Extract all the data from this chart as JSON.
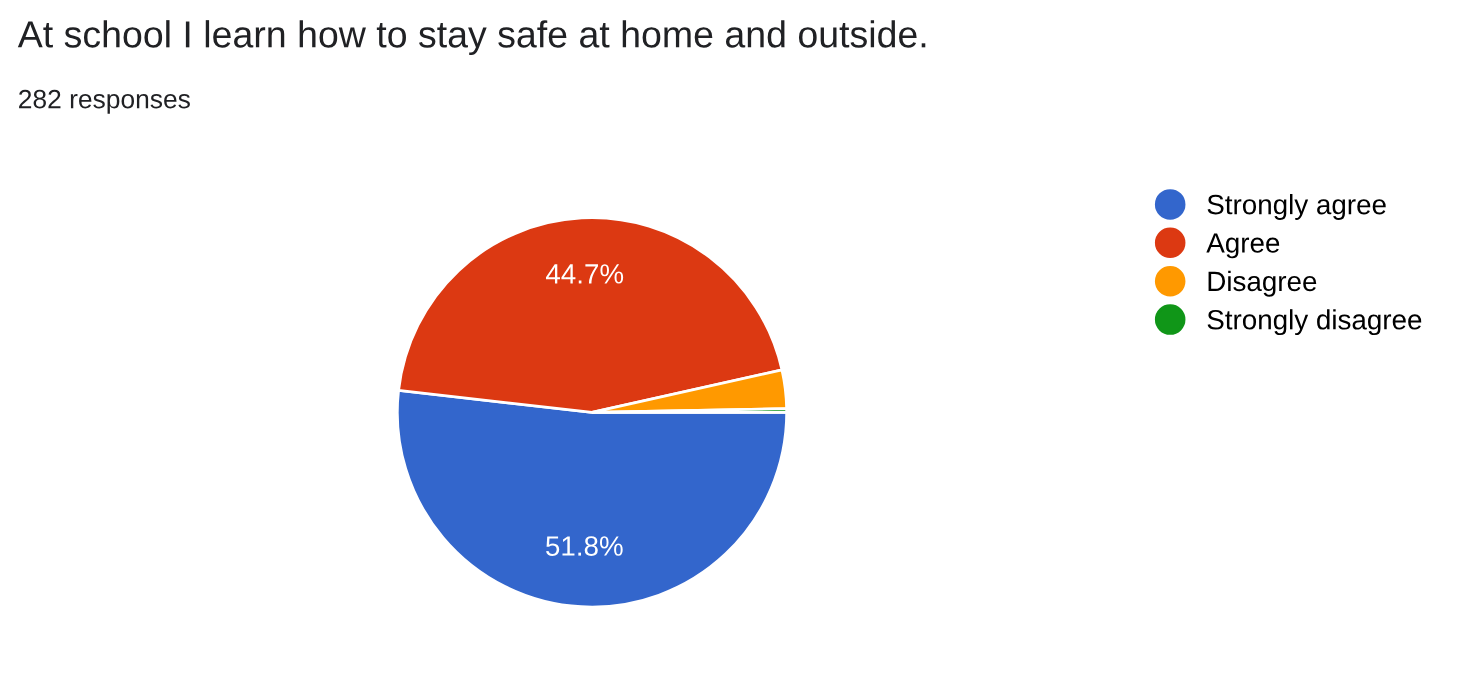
{
  "chart_data": {
    "type": "pie",
    "title": "At school I learn how to stay safe at home and outside.",
    "subtitle": "282 responses",
    "categories": [
      "Strongly agree",
      "Agree",
      "Disagree",
      "Strongly disagree"
    ],
    "values": [
      51.8,
      44.7,
      3.2,
      0.3
    ],
    "colors": [
      "#3366cc",
      "#dc3912",
      "#ff9900",
      "#109618"
    ],
    "value_labels": [
      "51.8%",
      "44.7%",
      null,
      null
    ],
    "legend": "right"
  }
}
